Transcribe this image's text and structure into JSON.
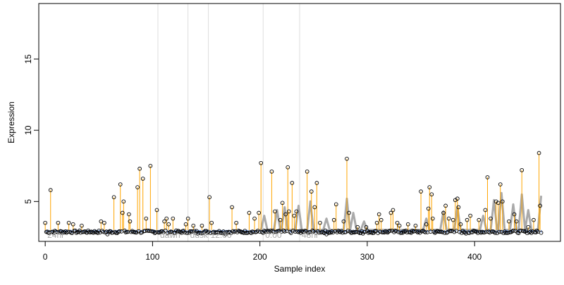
{
  "chart_data": {
    "type": "scatter",
    "title": "",
    "xlabel": "Sample index",
    "ylabel": "Expression",
    "xlim": [
      -6,
      480
    ],
    "ylim": [
      2.2,
      18.9
    ],
    "xticks": [
      0,
      100,
      200,
      300,
      400
    ],
    "yticks": [
      5,
      10,
      15
    ],
    "baseline": 3.0,
    "grid": false,
    "legend": "none",
    "colors": {
      "points_stroke": "#000000",
      "stems_up": "#ffa500",
      "stems_down": "#6495ed",
      "trace": "#aaaaaa",
      "segment_lines": "#dddddd",
      "segment_labels": "#aaaaaa",
      "axis": "#000000"
    },
    "segments": [
      {
        "label": "24hr",
        "x": 0,
        "boundary": null
      },
      {
        "label": "dawn",
        "x": 105,
        "boundary": 105
      },
      {
        "label": "dusk",
        "x": 133,
        "boundary": 133
      },
      {
        "label": "12:00",
        "x": 152,
        "boundary": 152
      },
      {
        "label": "0:00",
        "x": 203,
        "boundary": 203
      },
      {
        "label": "48hr",
        "x": 237,
        "boundary": 237
      }
    ],
    "peaks": [
      {
        "x": 0,
        "y": 3.5
      },
      {
        "x": 5,
        "y": 5.8
      },
      {
        "x": 12,
        "y": 3.5
      },
      {
        "x": 22,
        "y": 3.5
      },
      {
        "x": 26,
        "y": 3.4
      },
      {
        "x": 34,
        "y": 3.3
      },
      {
        "x": 52,
        "y": 3.6
      },
      {
        "x": 55,
        "y": 3.5
      },
      {
        "x": 64,
        "y": 5.3
      },
      {
        "x": 70,
        "y": 6.2
      },
      {
        "x": 72,
        "y": 4.2
      },
      {
        "x": 73,
        "y": 5.0
      },
      {
        "x": 78,
        "y": 4.1
      },
      {
        "x": 79,
        "y": 3.6
      },
      {
        "x": 86,
        "y": 6.0
      },
      {
        "x": 88,
        "y": 7.3
      },
      {
        "x": 91,
        "y": 6.6
      },
      {
        "x": 94,
        "y": 3.8
      },
      {
        "x": 98,
        "y": 7.5
      },
      {
        "x": 104,
        "y": 4.4
      },
      {
        "x": 111,
        "y": 3.6
      },
      {
        "x": 113,
        "y": 3.8
      },
      {
        "x": 115,
        "y": 3.4
      },
      {
        "x": 119,
        "y": 3.8
      },
      {
        "x": 131,
        "y": 3.4
      },
      {
        "x": 133,
        "y": 3.8
      },
      {
        "x": 138,
        "y": 3.3
      },
      {
        "x": 146,
        "y": 3.3
      },
      {
        "x": 153,
        "y": 5.3
      },
      {
        "x": 155,
        "y": 3.5
      },
      {
        "x": 174,
        "y": 4.6
      },
      {
        "x": 178,
        "y": 3.5
      },
      {
        "x": 190,
        "y": 4.2
      },
      {
        "x": 195,
        "y": 3.8
      },
      {
        "x": 199,
        "y": 4.2
      },
      {
        "x": 201,
        "y": 7.7
      },
      {
        "x": 211,
        "y": 7.1
      },
      {
        "x": 214,
        "y": 4.3
      },
      {
        "x": 219,
        "y": 3.7
      },
      {
        "x": 221,
        "y": 4.9
      },
      {
        "x": 224,
        "y": 4.1
      },
      {
        "x": 226,
        "y": 7.4
      },
      {
        "x": 227,
        "y": 4.3
      },
      {
        "x": 230,
        "y": 6.3
      },
      {
        "x": 232,
        "y": 4.0
      },
      {
        "x": 234,
        "y": 4.3
      },
      {
        "x": 244,
        "y": 7.1
      },
      {
        "x": 248,
        "y": 5.7
      },
      {
        "x": 251,
        "y": 4.6
      },
      {
        "x": 253,
        "y": 6.3
      },
      {
        "x": 256,
        "y": 3.5
      },
      {
        "x": 269,
        "y": 3.7
      },
      {
        "x": 271,
        "y": 4.8
      },
      {
        "x": 278,
        "y": 3.6
      },
      {
        "x": 281,
        "y": 8.0
      },
      {
        "x": 283,
        "y": 4.2
      },
      {
        "x": 291,
        "y": 3.2
      },
      {
        "x": 299,
        "y": 3.2
      },
      {
        "x": 309,
        "y": 3.5
      },
      {
        "x": 311,
        "y": 4.1
      },
      {
        "x": 313,
        "y": 3.7
      },
      {
        "x": 322,
        "y": 4.2
      },
      {
        "x": 324,
        "y": 4.4
      },
      {
        "x": 328,
        "y": 3.5
      },
      {
        "x": 330,
        "y": 3.3
      },
      {
        "x": 338,
        "y": 3.4
      },
      {
        "x": 345,
        "y": 3.3
      },
      {
        "x": 350,
        "y": 5.7
      },
      {
        "x": 355,
        "y": 3.4
      },
      {
        "x": 357,
        "y": 4.5
      },
      {
        "x": 358,
        "y": 6.0
      },
      {
        "x": 360,
        "y": 5.5
      },
      {
        "x": 361,
        "y": 3.8
      },
      {
        "x": 371,
        "y": 4.2
      },
      {
        "x": 373,
        "y": 4.7
      },
      {
        "x": 376,
        "y": 3.8
      },
      {
        "x": 380,
        "y": 3.7
      },
      {
        "x": 382,
        "y": 5.1
      },
      {
        "x": 384,
        "y": 5.2
      },
      {
        "x": 385,
        "y": 4.6
      },
      {
        "x": 387,
        "y": 3.4
      },
      {
        "x": 393,
        "y": 3.7
      },
      {
        "x": 396,
        "y": 4.0
      },
      {
        "x": 404,
        "y": 3.7
      },
      {
        "x": 410,
        "y": 4.4
      },
      {
        "x": 412,
        "y": 6.7
      },
      {
        "x": 415,
        "y": 3.8
      },
      {
        "x": 420,
        "y": 5.0
      },
      {
        "x": 422,
        "y": 4.9
      },
      {
        "x": 424,
        "y": 6.2
      },
      {
        "x": 426,
        "y": 5.0
      },
      {
        "x": 432,
        "y": 3.6
      },
      {
        "x": 437,
        "y": 4.1
      },
      {
        "x": 439,
        "y": 3.6
      },
      {
        "x": 444,
        "y": 7.2
      },
      {
        "x": 450,
        "y": 3.2
      },
      {
        "x": 455,
        "y": 3.7
      },
      {
        "x": 460,
        "y": 8.4
      },
      {
        "x": 461,
        "y": 4.7
      }
    ],
    "dips": [
      {
        "x": 30,
        "y": 2.85
      },
      {
        "x": 58,
        "y": 2.7
      },
      {
        "x": 120,
        "y": 2.8
      },
      {
        "x": 142,
        "y": 2.75
      },
      {
        "x": 168,
        "y": 2.7
      },
      {
        "x": 238,
        "y": 2.8
      },
      {
        "x": 262,
        "y": 2.7
      },
      {
        "x": 296,
        "y": 2.75
      },
      {
        "x": 338,
        "y": 2.7
      },
      {
        "x": 392,
        "y": 2.75
      },
      {
        "x": 430,
        "y": 2.8
      }
    ],
    "trace_peaks": [
      {
        "x": 204,
        "y": 4.0
      },
      {
        "x": 216,
        "y": 4.4
      },
      {
        "x": 223,
        "y": 4.6
      },
      {
        "x": 236,
        "y": 4.7
      },
      {
        "x": 247,
        "y": 5.0
      },
      {
        "x": 262,
        "y": 3.8
      },
      {
        "x": 281,
        "y": 5.2
      },
      {
        "x": 287,
        "y": 4.2
      },
      {
        "x": 297,
        "y": 3.6
      },
      {
        "x": 355,
        "y": 3.8
      },
      {
        "x": 371,
        "y": 4.3
      },
      {
        "x": 384,
        "y": 4.6
      },
      {
        "x": 408,
        "y": 4.0
      },
      {
        "x": 418,
        "y": 5.1
      },
      {
        "x": 425,
        "y": 5.6
      },
      {
        "x": 436,
        "y": 4.8
      },
      {
        "x": 444,
        "y": 5.5
      },
      {
        "x": 450,
        "y": 4.4
      },
      {
        "x": 462,
        "y": 5.4
      }
    ]
  }
}
